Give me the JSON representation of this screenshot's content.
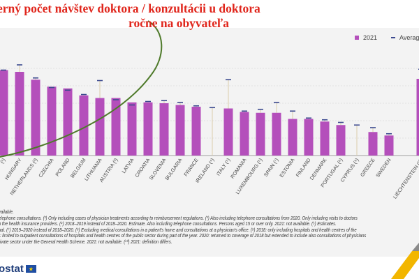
{
  "title": {
    "line1": "erný počet návštev doktora / konzultácii u doktora",
    "line2": "ročne na obyvateľa"
  },
  "legend": {
    "bar_label": "2021",
    "avg_label": "Average"
  },
  "colors": {
    "bar": "#b44fbb",
    "average": "#3c4a8f",
    "whisker": "#d9c9a3",
    "title": "#e0261c",
    "arrow": "#4e7a2a"
  },
  "chart_data": {
    "type": "bar",
    "ylim": [
      0,
      12
    ],
    "grid": true,
    "legend_position": "top-right",
    "categories": [
      "(¹)",
      "HUNGARY",
      "NETHERLANDS (³)",
      "CZECHIA",
      "POLAND",
      "BELGIUM",
      "LITHUANIA",
      "AUSTRIA (²)",
      "LATVIA",
      "CROATIA",
      "SLOVENIA",
      "BULGARIA",
      "FRANCE",
      "IRELAND (⁴)",
      "ITALY (⁵)",
      "ROMANIA",
      "LUXEMBOURG (⁶)",
      "SPAIN (⁷)",
      "ESTONIA",
      "FINLAND",
      "DENMARK",
      "PORTUGAL (⁸)",
      "CYPRUS (⁹)",
      "GREECE",
      "SWEDEN",
      "",
      "LIECHTENSTEIN (¹⁰)"
    ],
    "series": [
      {
        "name": "2021",
        "values": [
          9.8,
          9.6,
          8.7,
          7.9,
          7.7,
          6.9,
          6.6,
          6.6,
          6.1,
          6.1,
          6.0,
          5.8,
          5.6,
          null,
          5.4,
          5.0,
          4.9,
          4.9,
          4.2,
          4.2,
          3.9,
          3.5,
          null,
          2.7,
          2.3,
          null,
          8.8
        ]
      },
      {
        "name": "Average",
        "values": [
          9.8,
          10.4,
          8.9,
          7.8,
          7.5,
          7.0,
          8.6,
          6.4,
          5.8,
          6.2,
          6.3,
          6.1,
          5.7,
          5.5,
          8.7,
          5.1,
          5.3,
          6.1,
          5.1,
          4.3,
          4.1,
          3.8,
          3.5,
          3.2,
          2.5,
          null,
          9.9
        ]
      }
    ]
  },
  "notes": [
    "vailable.",
    "elephone consultations. (²) Only including cases of physician treatments according to reimbursement regulations. (³) Also including telephone consultations from 2020. Only including visits to doctors",
    "h the health insurance providers.  (⁴) 2018–2019 instead of 2018–2020. Estimate. Also including telephone consultations. Persons aged 15 or over only. 2021: not available. (⁵) Estimates.",
    "nal. (⁷) 2019–2020 instead of 2018–2020. (⁸) Excluding medical consultations in a patient's home and consultations at a physician's office. (⁹) 2018: only including hospitals and health centres of the",
    "): limited to outpatient consultations of hospitals and health centres of the public sector during part of the year. 2020: returned to coverage of 2018 but extended to include also consultations of physicians",
    "rivate sector under the General Health Scheme. 2021: not available.  (¹⁰) 2021: definition differs."
  ],
  "logo": {
    "text": "ostat"
  }
}
